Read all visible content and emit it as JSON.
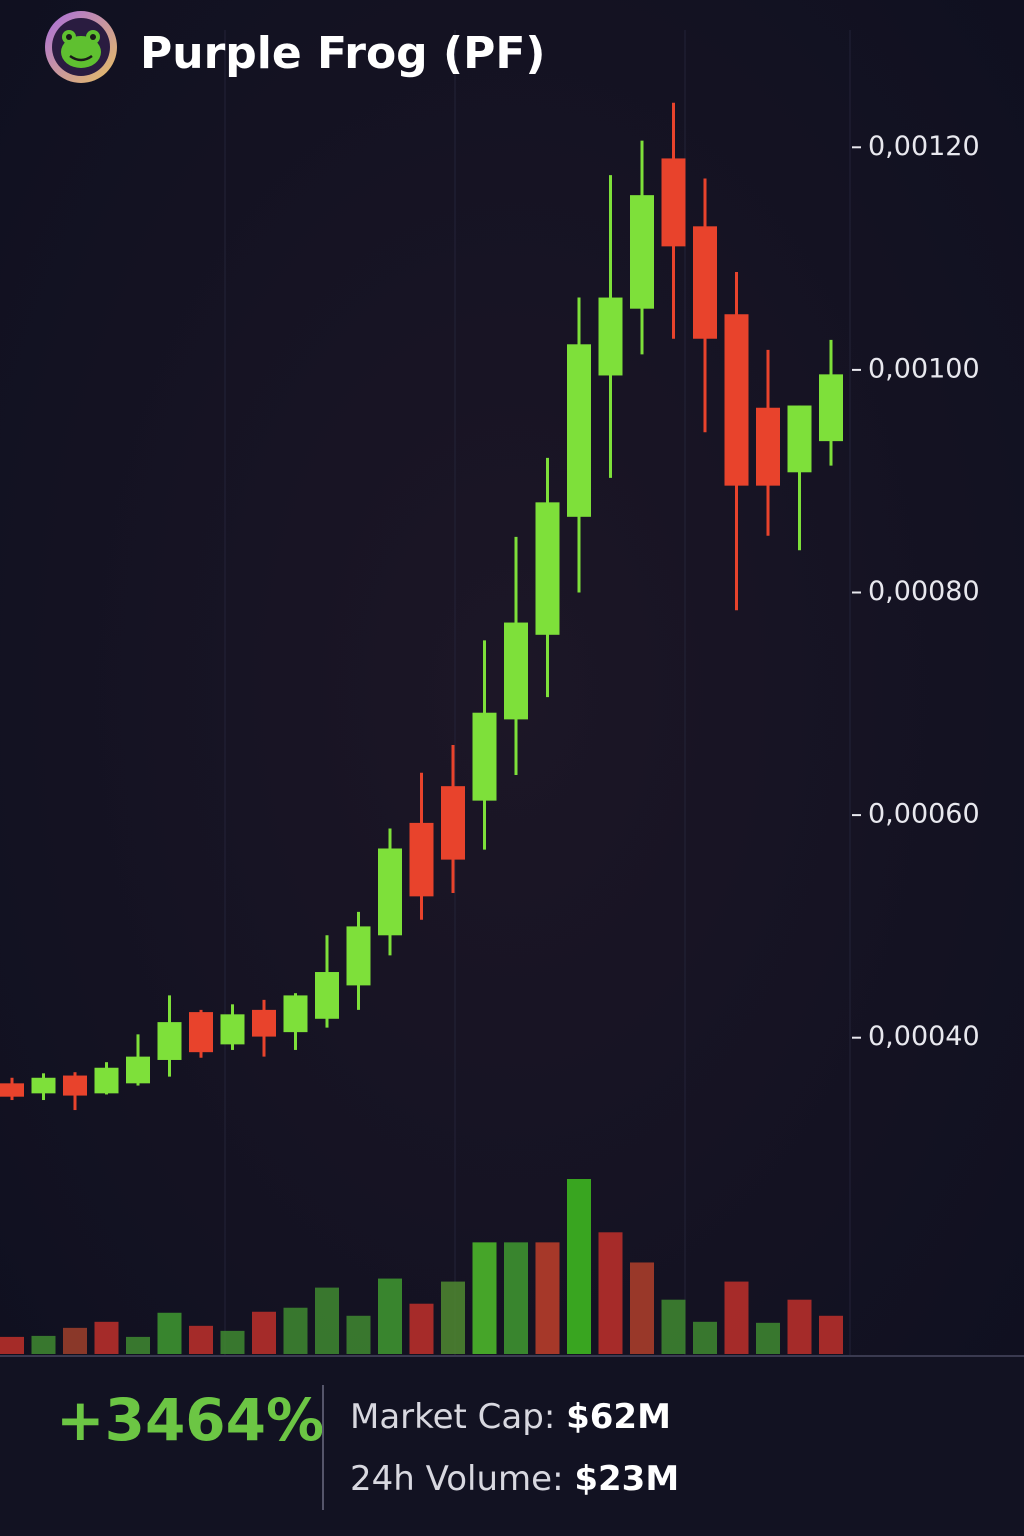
{
  "header": {
    "title": "Purple Frog (PF)"
  },
  "chart_data": {
    "type": "candlestick",
    "up_color": "#7ee03a",
    "down_color": "#e8432c",
    "ylim": [
      0.0003,
      0.0013
    ],
    "yticks": [
      {
        "value": 0.0012,
        "label": "0,00120"
      },
      {
        "value": 0.001,
        "label": "0,00100"
      },
      {
        "value": 0.0008,
        "label": "0,00080"
      },
      {
        "value": 0.0006,
        "label": "0,00060"
      },
      {
        "value": 0.0004,
        "label": "0,00040"
      }
    ],
    "open": [
      0.000359,
      0.00035,
      0.000366,
      0.00035,
      0.000359,
      0.00038,
      0.000423,
      0.000394,
      0.000425,
      0.000405,
      0.000417,
      0.000447,
      0.000492,
      0.000593,
      0.000626,
      0.000613,
      0.000686,
      0.000762,
      0.000868,
      0.000995,
      0.001055,
      0.00119,
      0.001129,
      0.00105,
      0.000966,
      0.000908,
      0.000936
    ],
    "high": [
      0.000364,
      0.000368,
      0.000369,
      0.000378,
      0.000403,
      0.000438,
      0.000425,
      0.00043,
      0.000434,
      0.00044,
      0.000492,
      0.000513,
      0.000588,
      0.000638,
      0.000663,
      0.000757,
      0.00085,
      0.000921,
      0.001065,
      0.001175,
      0.001206,
      0.00124,
      0.001172,
      0.001088,
      0.001018,
      0.000968,
      0.001027
    ],
    "low": [
      0.000344,
      0.000344,
      0.000335,
      0.000349,
      0.000357,
      0.000365,
      0.000382,
      0.000389,
      0.000383,
      0.000389,
      0.000409,
      0.000425,
      0.000474,
      0.000506,
      0.00053,
      0.000569,
      0.000636,
      0.000706,
      0.0008,
      0.000903,
      0.001014,
      0.001028,
      0.000944,
      0.000784,
      0.000851,
      0.000838,
      0.000914
    ],
    "close": [
      0.000347,
      0.000364,
      0.000348,
      0.000373,
      0.000383,
      0.000414,
      0.000387,
      0.000421,
      0.000401,
      0.000438,
      0.000459,
      0.0005,
      0.00057,
      0.000527,
      0.00056,
      0.000692,
      0.000773,
      0.000881,
      0.001023,
      0.001065,
      0.001157,
      0.001111,
      0.001028,
      0.000896,
      0.000896,
      0.000968,
      0.000996
    ],
    "volume": [
      17,
      18,
      26,
      32,
      17,
      41,
      28,
      23,
      42,
      46,
      66,
      38,
      75,
      50,
      72,
      111,
      111,
      111,
      174,
      121,
      91,
      54,
      32,
      72,
      31,
      54,
      38
    ],
    "volume_colors": [
      "#c0302a",
      "#3f8a30",
      "#a0402a",
      "#c0302a",
      "#3f8a30",
      "#3f9a30",
      "#c0302a",
      "#3f8a30",
      "#c0302a",
      "#3f8a30",
      "#3f8a30",
      "#3f8a30",
      "#3f9a30",
      "#c0302a",
      "#4f8a30",
      "#4fbf2a",
      "#3f9a30",
      "#c0402a",
      "#3fbf20",
      "#c0302a",
      "#b0402a",
      "#3f8a30",
      "#3f8a30",
      "#c0302a",
      "#3f8a30",
      "#c0302a",
      "#c0302a"
    ]
  },
  "footer": {
    "change": "+3464%",
    "market_cap": {
      "label": "Market Cap:",
      "value": "$62M"
    },
    "volume_24h": {
      "label": "24h Volume:",
      "value": "$23M"
    }
  }
}
